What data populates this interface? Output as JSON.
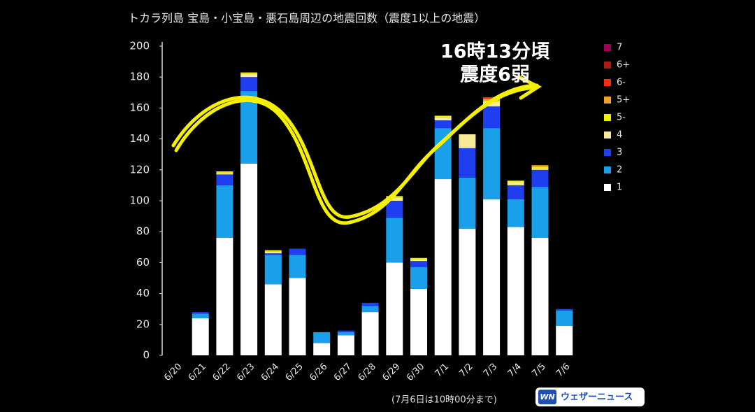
{
  "chart_data": {
    "type": "bar",
    "stacked": true,
    "title": "トカラ列島 宝島・小宝島・悪石島周辺の地震回数（震度1以上の地震）",
    "annotations": [
      "16時13分頃",
      "震度6弱"
    ],
    "note": "(7月6日は10時00分まで)",
    "logo": {
      "icon": "WN",
      "text": "ウェザーニュース"
    },
    "categories": [
      "6/20",
      "6/21",
      "6/22",
      "6/23",
      "6/24",
      "6/25",
      "6/26",
      "6/27",
      "6/28",
      "6/29",
      "6/30",
      "7/1",
      "7/2",
      "7/3",
      "7/4",
      "7/5",
      "7/6"
    ],
    "series": [
      {
        "name": "1",
        "color": "#ffffff",
        "values": [
          0,
          24,
          76,
          124,
          46,
          50,
          8,
          13,
          28,
          60,
          43,
          114,
          82,
          101,
          83,
          76,
          19
        ]
      },
      {
        "name": "2",
        "color": "#1aa0ea",
        "values": [
          0,
          3,
          34,
          47,
          19,
          15,
          7,
          2,
          4,
          29,
          14,
          33,
          33,
          46,
          18,
          33,
          10
        ]
      },
      {
        "name": "3",
        "color": "#1f3ef0",
        "values": [
          0,
          1,
          7,
          9,
          1,
          4,
          0,
          1,
          2,
          11,
          4,
          5,
          19,
          14,
          9,
          11,
          1
        ]
      },
      {
        "name": "4",
        "color": "#f7eb98",
        "values": [
          0,
          0,
          1,
          2,
          1,
          0,
          0,
          0,
          0,
          2,
          1,
          2,
          9,
          3,
          2,
          1,
          0
        ]
      },
      {
        "name": "5-",
        "color": "#f0f000",
        "values": [
          0,
          0,
          1,
          1,
          1,
          0,
          0,
          0,
          0,
          1,
          1,
          1,
          0,
          1,
          1,
          1,
          0
        ]
      },
      {
        "name": "5+",
        "color": "#f5a020",
        "values": [
          0,
          0,
          0,
          0,
          0,
          0,
          0,
          0,
          0,
          0,
          0,
          0,
          0,
          1,
          0,
          1,
          0
        ]
      },
      {
        "name": "6-",
        "color": "#f03010",
        "values": [
          0,
          0,
          0,
          0,
          0,
          0,
          0,
          0,
          0,
          0,
          0,
          0,
          0,
          1,
          0,
          0,
          0
        ]
      },
      {
        "name": "6+",
        "color": "#b01818",
        "values": [
          0,
          0,
          0,
          0,
          0,
          0,
          0,
          0,
          0,
          0,
          0,
          0,
          0,
          0,
          0,
          0,
          0
        ]
      },
      {
        "name": "7",
        "color": "#a0005a",
        "values": [
          0,
          0,
          0,
          0,
          0,
          0,
          0,
          0,
          0,
          0,
          0,
          0,
          0,
          0,
          0,
          0,
          0
        ]
      }
    ],
    "ylim": [
      0,
      200
    ],
    "yticks": [
      0,
      20,
      40,
      60,
      80,
      100,
      120,
      140,
      160,
      180,
      200
    ],
    "grid": false,
    "legend": "right"
  }
}
